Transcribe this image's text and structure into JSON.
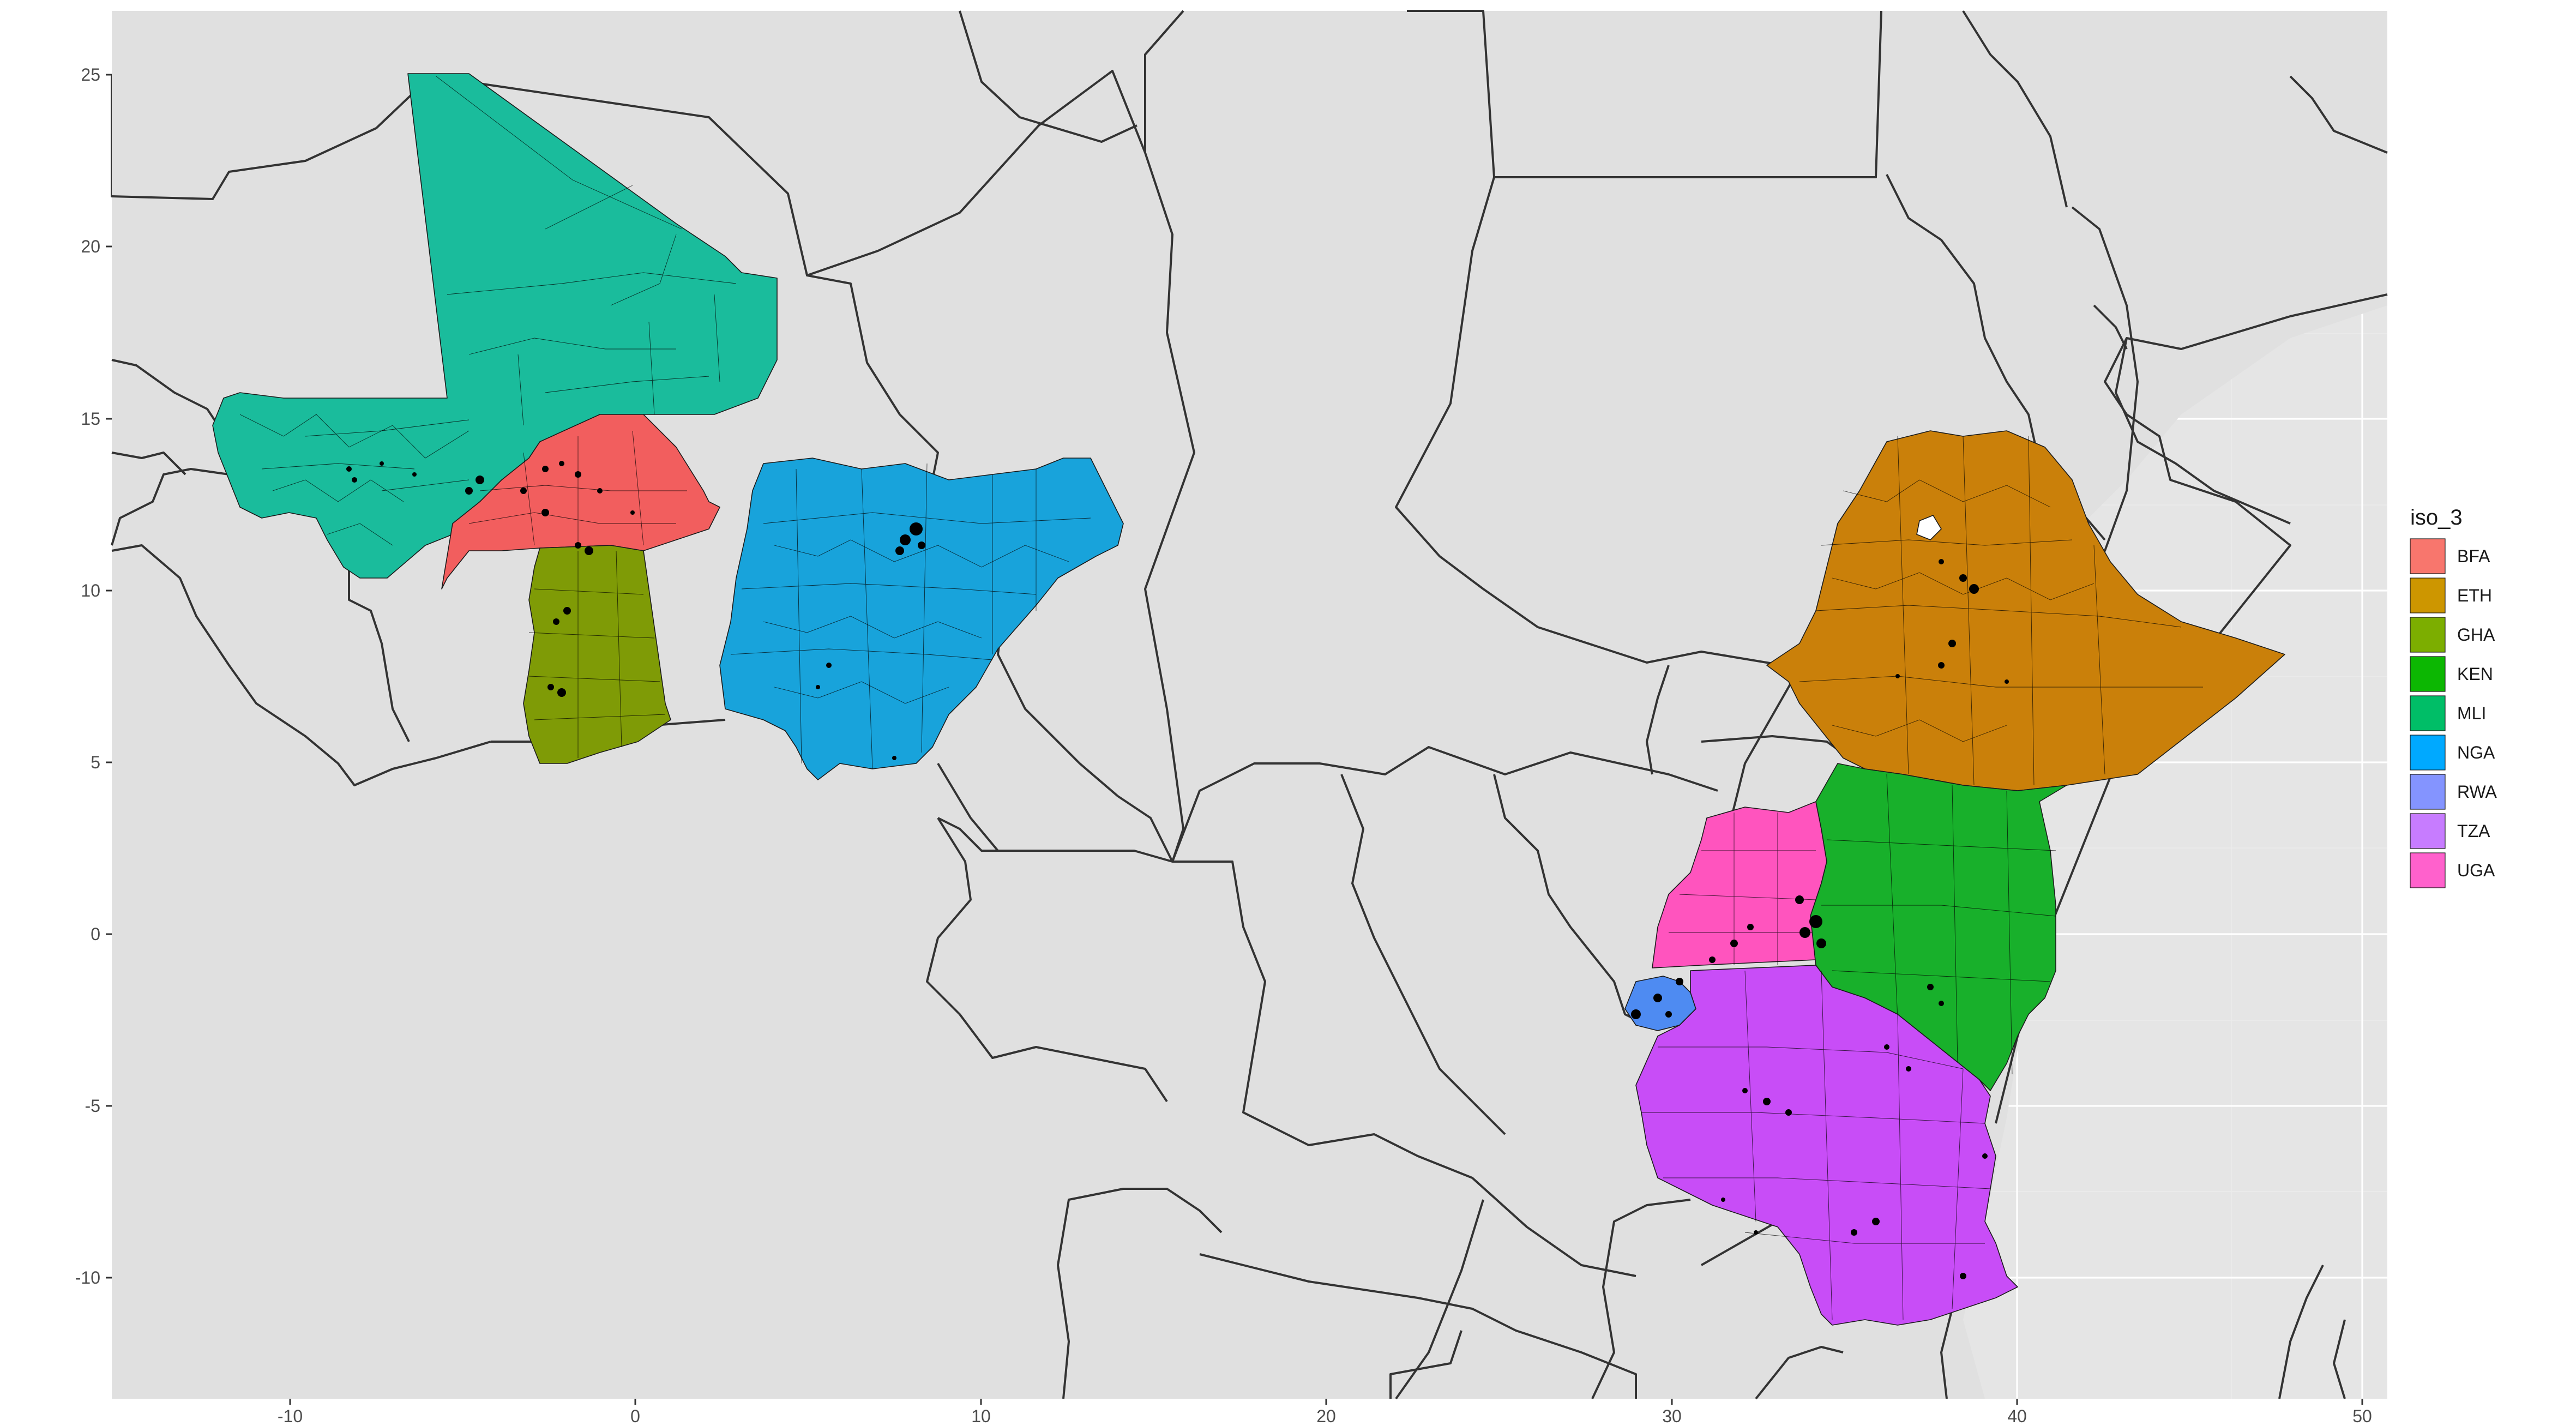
{
  "chart_data": {
    "type": "map",
    "x_ticks": [
      "-10",
      "0",
      "10",
      "20",
      "30",
      "40",
      "50"
    ],
    "y_ticks": [
      "25",
      "20",
      "15",
      "10",
      "5",
      "0",
      "-5",
      "-10"
    ],
    "legend": {
      "title": "iso_3",
      "position": "right",
      "entries": [
        {
          "code": "BFA",
          "color": "#F8766D"
        },
        {
          "code": "ETH",
          "color": "#CD9600"
        },
        {
          "code": "GHA",
          "color": "#7CAE00"
        },
        {
          "code": "KEN",
          "color": "#0CB702"
        },
        {
          "code": "MLI",
          "color": "#00BE67"
        },
        {
          "code": "NGA",
          "color": "#00A9FF"
        },
        {
          "code": "RWA",
          "color": "#8494FF"
        },
        {
          "code": "TZA",
          "color": "#C77CFF"
        },
        {
          "code": "UGA",
          "color": "#FF61CC"
        }
      ]
    },
    "xlim": [
      -15.3,
      51.2
    ],
    "ylim": [
      -13.5,
      26.9
    ],
    "background": "#E5E5E5",
    "grid": true,
    "point_color": "#000000"
  }
}
